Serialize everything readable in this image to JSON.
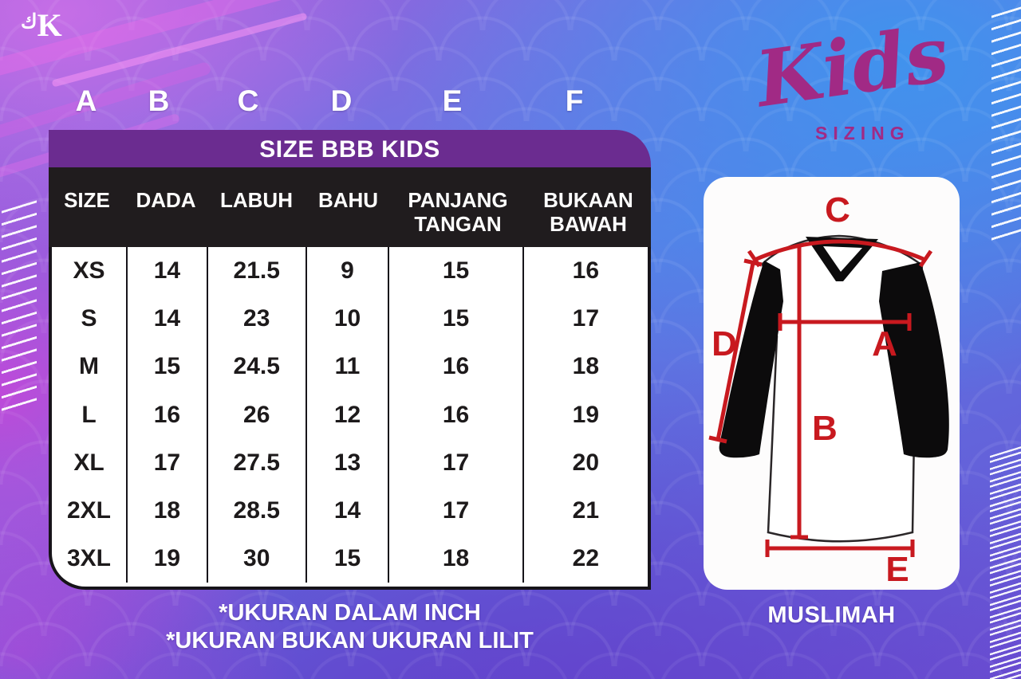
{
  "brand": {
    "mark_arabic": "ك",
    "mark_latin": "K"
  },
  "column_letters": {
    "letters": [
      "A",
      "B",
      "C",
      "D",
      "E",
      "F"
    ]
  },
  "size_table": {
    "title": "SIZE BBB KIDS",
    "headers": [
      "SIZE",
      "DADA",
      "LABUH",
      "BAHU",
      "PANJANG TANGAN",
      "BUKAAN BAWAH"
    ],
    "rows": [
      [
        "XS",
        "14",
        "21.5",
        "9",
        "15",
        "16"
      ],
      [
        "S",
        "14",
        "23",
        "10",
        "15",
        "17"
      ],
      [
        "M",
        "15",
        "24.5",
        "11",
        "16",
        "18"
      ],
      [
        "L",
        "16",
        "26",
        "12",
        "16",
        "19"
      ],
      [
        "XL",
        "17",
        "27.5",
        "13",
        "17",
        "20"
      ],
      [
        "2XL",
        "18",
        "28.5",
        "14",
        "17",
        "21"
      ],
      [
        "3XL",
        "19",
        "30",
        "15",
        "18",
        "22"
      ]
    ]
  },
  "notes": {
    "line1": "*UKURAN DALAM INCH",
    "line2": "*UKURAN BUKAN UKURAN LILIT"
  },
  "logo": {
    "title": "Kids",
    "subtitle": "SIZING"
  },
  "diagram": {
    "caption": "MUSLIMAH",
    "labels": {
      "a": "A",
      "b": "B",
      "c": "C",
      "d": "D",
      "e": "E"
    }
  },
  "colors": {
    "title_bar_purple": "#6b2c90",
    "header_row_black": "#201c1e",
    "measure_red": "#c8191f",
    "logo_magenta": "#a12a85",
    "background_blue": "#4b86e6",
    "background_purple": "#6a3fcd",
    "background_magenta": "#d43ed6"
  }
}
